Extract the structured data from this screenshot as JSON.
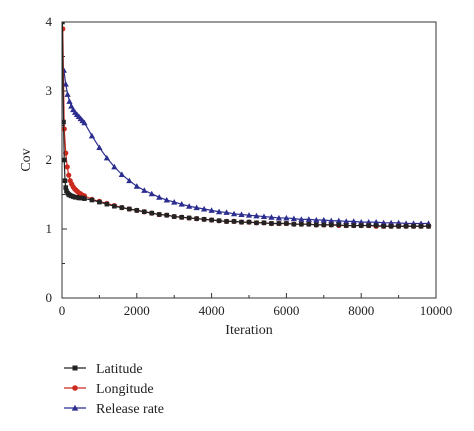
{
  "chart_data": {
    "type": "line",
    "title": "",
    "xlabel": "Iteration",
    "ylabel": "Cov",
    "xlim": [
      0,
      10000
    ],
    "ylim": [
      0,
      4
    ],
    "xticks": [
      0,
      2000,
      4000,
      6000,
      8000,
      10000
    ],
    "yticks": [
      0,
      1,
      2,
      3,
      4
    ],
    "legend_position": "bottom-left, below plot",
    "grid": false,
    "series": [
      {
        "name": "Latitude",
        "color": "#222222",
        "marker": "square",
        "x": [
          10,
          40,
          60,
          80,
          100,
          120,
          150,
          180,
          210,
          250,
          300,
          350,
          400,
          450,
          500,
          550,
          600,
          800,
          1000,
          1200,
          1400,
          1600,
          1800,
          2000,
          2200,
          2400,
          2600,
          2800,
          3000,
          3200,
          3400,
          3600,
          3800,
          4000,
          4200,
          4400,
          4600,
          4800,
          5000,
          5200,
          5400,
          5600,
          5800,
          6000,
          6200,
          6400,
          6600,
          6800,
          7000,
          7200,
          7400,
          7600,
          7800,
          8000,
          8200,
          8400,
          8600,
          8800,
          9000,
          9200,
          9400,
          9600,
          9800
        ],
        "y": [
          4.0,
          2.55,
          2.0,
          1.7,
          1.6,
          1.55,
          1.52,
          1.5,
          1.49,
          1.48,
          1.47,
          1.46,
          1.46,
          1.45,
          1.45,
          1.45,
          1.44,
          1.42,
          1.39,
          1.36,
          1.33,
          1.31,
          1.29,
          1.27,
          1.25,
          1.23,
          1.21,
          1.2,
          1.18,
          1.17,
          1.16,
          1.15,
          1.14,
          1.13,
          1.12,
          1.11,
          1.11,
          1.1,
          1.1,
          1.09,
          1.09,
          1.08,
          1.08,
          1.08,
          1.07,
          1.07,
          1.07,
          1.06,
          1.06,
          1.06,
          1.06,
          1.05,
          1.05,
          1.05,
          1.05,
          1.05,
          1.04,
          1.04,
          1.04,
          1.04,
          1.04,
          1.04,
          1.04
        ]
      },
      {
        "name": "Longitude",
        "color": "#cc2a1e",
        "marker": "circle",
        "x": [
          20,
          60,
          100,
          140,
          180,
          220,
          260,
          300,
          340,
          380,
          420,
          460,
          500,
          550,
          600,
          800,
          1000,
          1200,
          1400,
          1600,
          1800,
          2000,
          2200,
          2400,
          2600,
          2800,
          3000,
          3200,
          3400,
          3600,
          3800,
          4000,
          4200,
          4400,
          4600,
          4800,
          5000,
          5200,
          5400,
          5600,
          5800,
          6000,
          6200,
          6400,
          6600,
          6800,
          7000,
          7200,
          7400,
          7600,
          7800,
          8000,
          8200,
          8400,
          8600,
          8800,
          9000,
          9200,
          9400,
          9600,
          9800
        ],
        "y": [
          3.9,
          2.45,
          2.1,
          1.9,
          1.78,
          1.7,
          1.65,
          1.61,
          1.58,
          1.56,
          1.54,
          1.52,
          1.51,
          1.49,
          1.48,
          1.43,
          1.4,
          1.37,
          1.34,
          1.31,
          1.29,
          1.27,
          1.25,
          1.23,
          1.21,
          1.2,
          1.18,
          1.17,
          1.16,
          1.15,
          1.14,
          1.13,
          1.12,
          1.11,
          1.11,
          1.1,
          1.1,
          1.09,
          1.09,
          1.08,
          1.08,
          1.08,
          1.07,
          1.07,
          1.07,
          1.06,
          1.06,
          1.06,
          1.05,
          1.05,
          1.05,
          1.05,
          1.05,
          1.04,
          1.04,
          1.04,
          1.04,
          1.04,
          1.04,
          1.04,
          1.04
        ]
      },
      {
        "name": "Release rate",
        "color": "#2b2d8f",
        "marker": "triangle",
        "x": [
          50,
          100,
          150,
          200,
          250,
          300,
          350,
          400,
          450,
          500,
          550,
          600,
          800,
          1000,
          1200,
          1400,
          1600,
          1800,
          2000,
          2200,
          2400,
          2600,
          2800,
          3000,
          3200,
          3400,
          3600,
          3800,
          4000,
          4200,
          4400,
          4600,
          4800,
          5000,
          5200,
          5400,
          5600,
          5800,
          6000,
          6200,
          6400,
          6600,
          6800,
          7000,
          7200,
          7400,
          7600,
          7800,
          8000,
          8200,
          8400,
          8600,
          8800,
          9000,
          9200,
          9400,
          9600,
          9800
        ],
        "y": [
          3.3,
          3.1,
          2.95,
          2.85,
          2.78,
          2.73,
          2.69,
          2.66,
          2.63,
          2.6,
          2.57,
          2.54,
          2.35,
          2.18,
          2.03,
          1.9,
          1.79,
          1.7,
          1.62,
          1.56,
          1.51,
          1.46,
          1.42,
          1.39,
          1.36,
          1.33,
          1.31,
          1.29,
          1.27,
          1.25,
          1.24,
          1.22,
          1.21,
          1.2,
          1.19,
          1.18,
          1.17,
          1.16,
          1.16,
          1.15,
          1.14,
          1.14,
          1.13,
          1.13,
          1.12,
          1.12,
          1.11,
          1.11,
          1.1,
          1.1,
          1.1,
          1.09,
          1.09,
          1.09,
          1.08,
          1.08,
          1.08,
          1.08
        ]
      }
    ]
  }
}
